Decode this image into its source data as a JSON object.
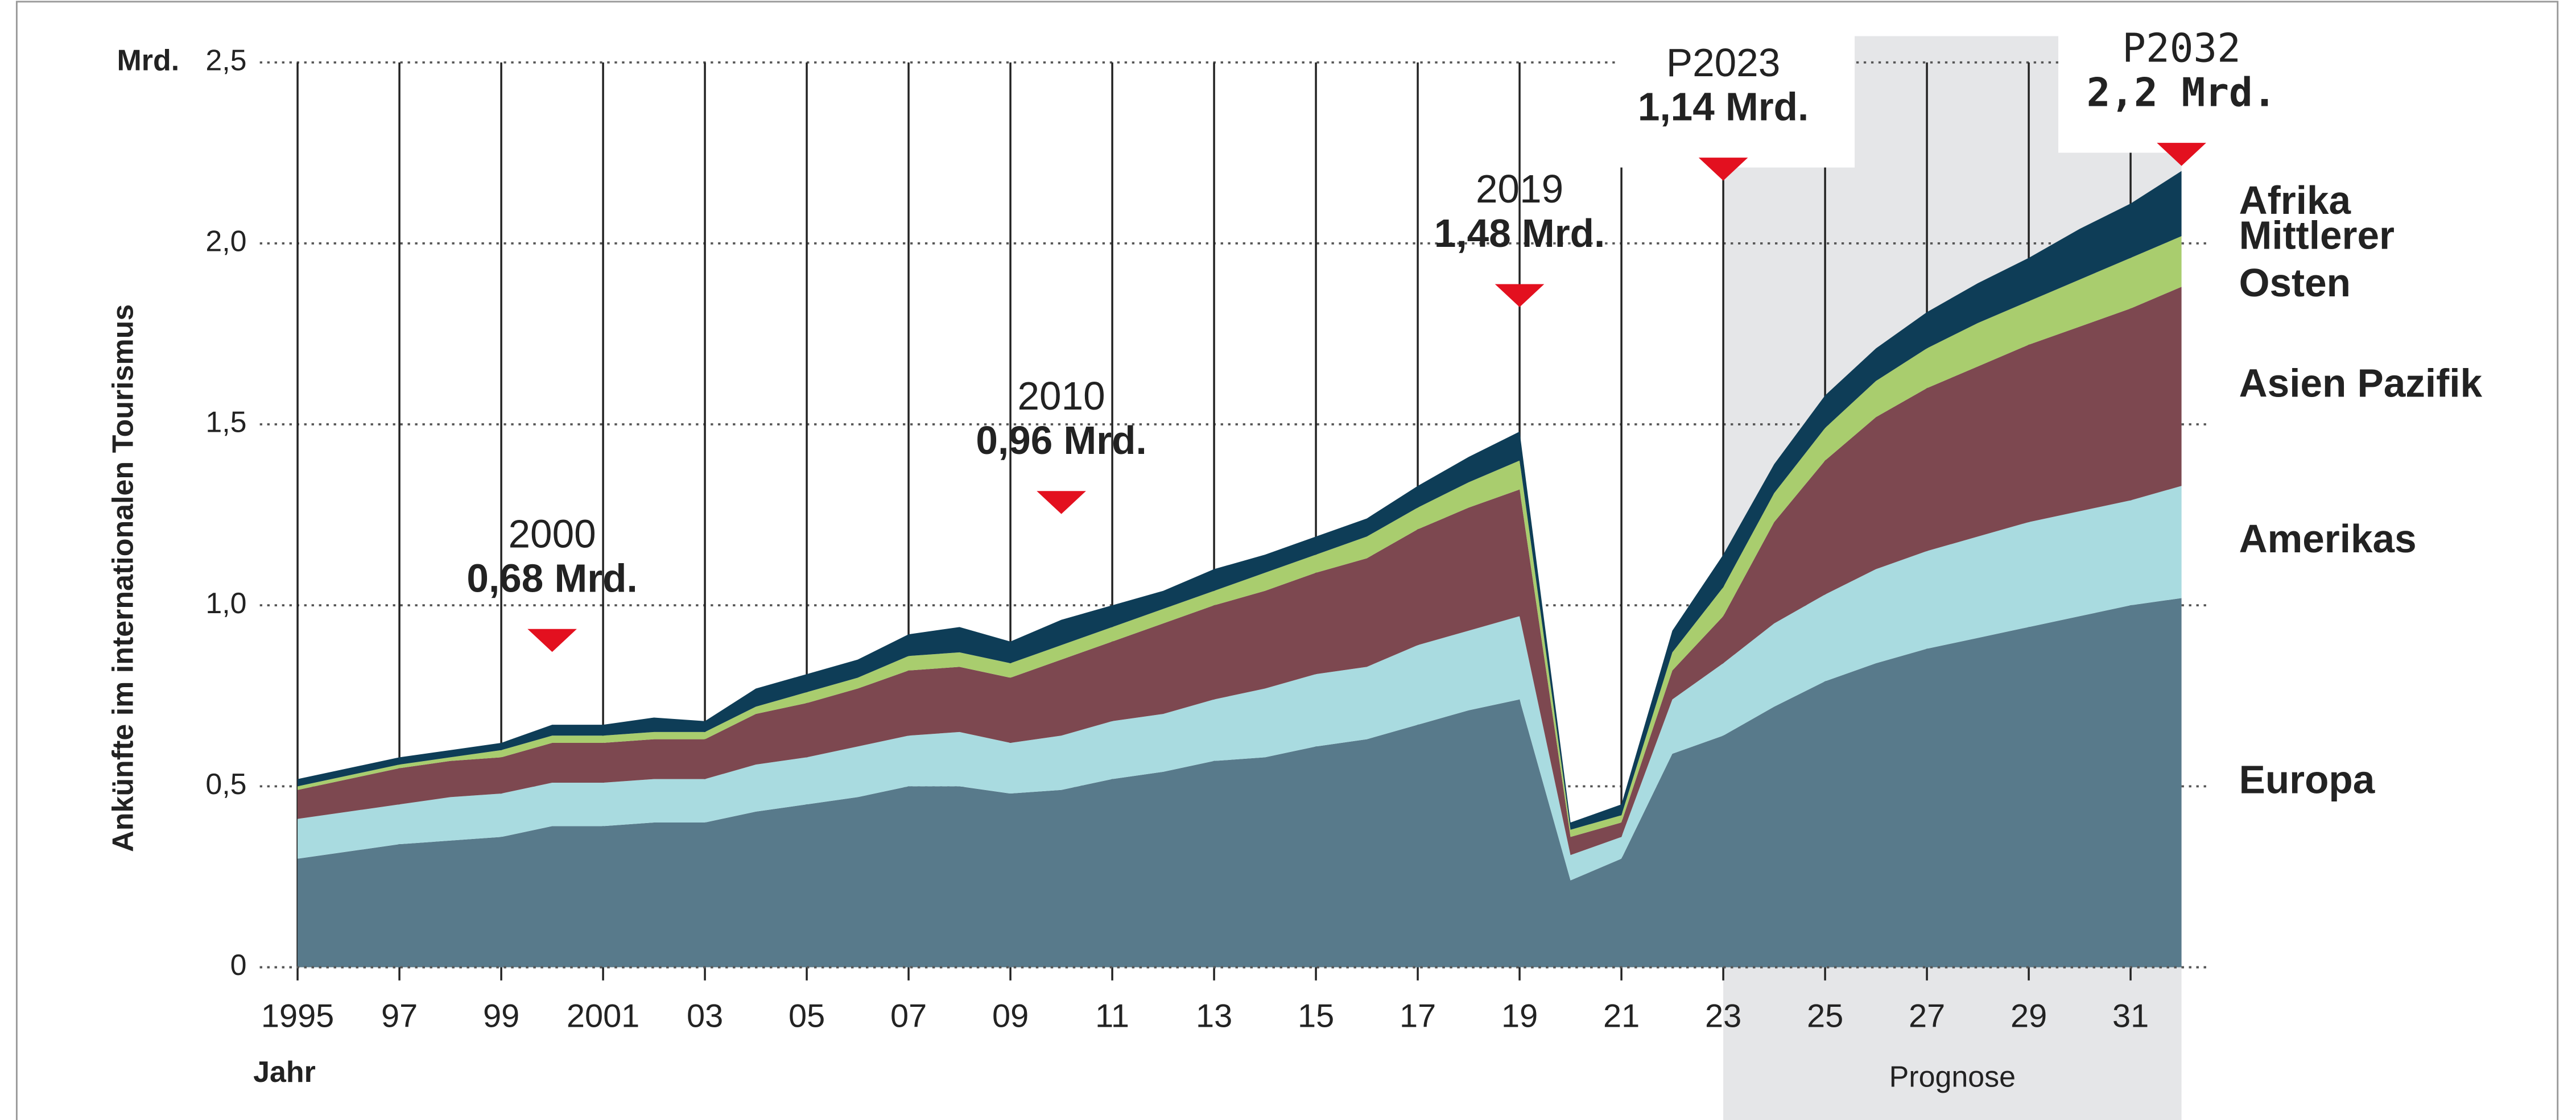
{
  "chart_data": {
    "type": "area",
    "stacked": true,
    "y_unit": "Mrd.",
    "y_label": "Ankünfte im internationalen Tourismus",
    "x_label": "Jahr",
    "x": [
      1995,
      1996,
      1997,
      1998,
      1999,
      2000,
      2001,
      2002,
      2003,
      2004,
      2005,
      2006,
      2007,
      2008,
      2009,
      2010,
      2011,
      2012,
      2013,
      2014,
      2015,
      2016,
      2017,
      2018,
      2019,
      2020,
      2021,
      2022,
      2023,
      2024,
      2025,
      2026,
      2027,
      2028,
      2029,
      2030,
      2031,
      2032
    ],
    "series": [
      {
        "name": "Europa",
        "color": "#587a8b",
        "values": [
          0.3,
          0.32,
          0.34,
          0.35,
          0.36,
          0.39,
          0.39,
          0.4,
          0.4,
          0.43,
          0.45,
          0.47,
          0.5,
          0.5,
          0.48,
          0.49,
          0.52,
          0.54,
          0.57,
          0.58,
          0.61,
          0.63,
          0.67,
          0.71,
          0.74,
          0.24,
          0.3,
          0.59,
          0.64,
          0.72,
          0.79,
          0.84,
          0.88,
          0.91,
          0.94,
          0.97,
          1.0,
          1.02
        ]
      },
      {
        "name": "Amerikas",
        "color": "#a9dbe0",
        "values": [
          0.11,
          0.11,
          0.11,
          0.12,
          0.12,
          0.12,
          0.12,
          0.12,
          0.12,
          0.13,
          0.13,
          0.14,
          0.14,
          0.15,
          0.14,
          0.15,
          0.16,
          0.16,
          0.17,
          0.19,
          0.2,
          0.2,
          0.22,
          0.22,
          0.23,
          0.07,
          0.06,
          0.15,
          0.2,
          0.23,
          0.24,
          0.26,
          0.27,
          0.28,
          0.29,
          0.29,
          0.29,
          0.31
        ]
      },
      {
        "name": "Asien Pazifik",
        "color": "#7d4850",
        "values": [
          0.08,
          0.09,
          0.1,
          0.1,
          0.1,
          0.11,
          0.11,
          0.11,
          0.11,
          0.14,
          0.15,
          0.16,
          0.18,
          0.18,
          0.18,
          0.21,
          0.22,
          0.25,
          0.26,
          0.27,
          0.28,
          0.3,
          0.32,
          0.34,
          0.35,
          0.05,
          0.04,
          0.08,
          0.13,
          0.28,
          0.37,
          0.42,
          0.45,
          0.47,
          0.49,
          0.51,
          0.53,
          0.55
        ]
      },
      {
        "name": "Mittlerer Osten",
        "color": "#a9cd6e",
        "values": [
          0.01,
          0.01,
          0.01,
          0.01,
          0.02,
          0.02,
          0.02,
          0.02,
          0.02,
          0.02,
          0.03,
          0.03,
          0.04,
          0.04,
          0.04,
          0.04,
          0.04,
          0.04,
          0.04,
          0.05,
          0.05,
          0.06,
          0.06,
          0.07,
          0.08,
          0.02,
          0.02,
          0.05,
          0.08,
          0.08,
          0.09,
          0.1,
          0.11,
          0.12,
          0.12,
          0.13,
          0.14,
          0.14
        ]
      },
      {
        "name": "Afrika",
        "color": "#0e3d57",
        "values": [
          0.02,
          0.02,
          0.02,
          0.02,
          0.02,
          0.03,
          0.03,
          0.04,
          0.03,
          0.05,
          0.05,
          0.05,
          0.06,
          0.07,
          0.06,
          0.07,
          0.06,
          0.05,
          0.06,
          0.05,
          0.05,
          0.05,
          0.06,
          0.07,
          0.08,
          0.02,
          0.03,
          0.06,
          0.09,
          0.08,
          0.09,
          0.09,
          0.1,
          0.11,
          0.12,
          0.14,
          0.15,
          0.18
        ]
      }
    ],
    "xlim": [
      1995,
      2032
    ],
    "xticks": [
      {
        "value": 1995,
        "label": "1995"
      },
      {
        "value": 1997,
        "label": "97"
      },
      {
        "value": 1999,
        "label": "99"
      },
      {
        "value": 2001,
        "label": "2001"
      },
      {
        "value": 2003,
        "label": "03"
      },
      {
        "value": 2005,
        "label": "05"
      },
      {
        "value": 2007,
        "label": "07"
      },
      {
        "value": 2009,
        "label": "09"
      },
      {
        "value": 2011,
        "label": "11"
      },
      {
        "value": 2013,
        "label": "13"
      },
      {
        "value": 2015,
        "label": "15"
      },
      {
        "value": 2017,
        "label": "17"
      },
      {
        "value": 2019,
        "label": "19"
      },
      {
        "value": 2021,
        "label": "21"
      },
      {
        "value": 2023,
        "label": "23"
      },
      {
        "value": 2025,
        "label": "25"
      },
      {
        "value": 2027,
        "label": "27"
      },
      {
        "value": 2029,
        "label": "29"
      },
      {
        "value": 2031,
        "label": "31"
      }
    ],
    "ylim": [
      0,
      2.5
    ],
    "yticks": [
      0,
      {
        "value": 0.5,
        "label": "0,5"
      },
      {
        "value": 1.0,
        "label": "1,0"
      },
      {
        "value": 1.5,
        "label": "1,5"
      },
      {
        "value": 2.0,
        "label": "2,0"
      },
      {
        "value": 2.5,
        "label": "2,5"
      }
    ],
    "grid": true,
    "forecast": {
      "label": "Prognose",
      "start": 2023,
      "end": 2032
    },
    "annotations": [
      {
        "x": 2000,
        "title": "2000",
        "text": "0,68 Mrd."
      },
      {
        "x": 2010,
        "title": "2010",
        "text": "0,96 Mrd."
      },
      {
        "x": 2019,
        "title": "2019",
        "text": "1,48 Mrd."
      },
      {
        "x": 2023,
        "title": "P2023",
        "text": "1,14 Mrd."
      },
      {
        "x": 2032,
        "title": "P2032",
        "text": "2,2 Mrd."
      }
    ]
  }
}
